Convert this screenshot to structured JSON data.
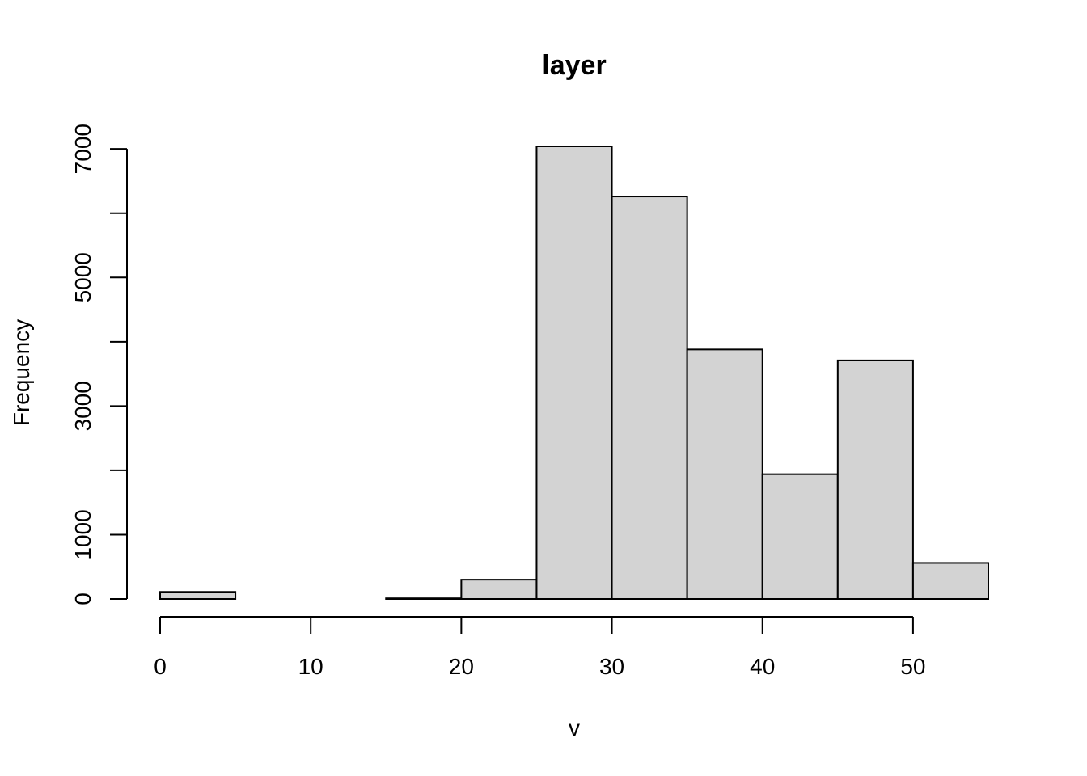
{
  "chart_data": {
    "type": "bar",
    "title": "layer",
    "xlabel": "v",
    "ylabel": "Frequency",
    "bins": [
      {
        "from": 0,
        "to": 5,
        "count": 110
      },
      {
        "from": 5,
        "to": 10,
        "count": 0
      },
      {
        "from": 10,
        "to": 15,
        "count": 0
      },
      {
        "from": 15,
        "to": 20,
        "count": 10
      },
      {
        "from": 20,
        "to": 25,
        "count": 300
      },
      {
        "from": 25,
        "to": 30,
        "count": 7040
      },
      {
        "from": 30,
        "to": 35,
        "count": 6260
      },
      {
        "from": 35,
        "to": 40,
        "count": 3880
      },
      {
        "from": 40,
        "to": 45,
        "count": 1940
      },
      {
        "from": 45,
        "to": 50,
        "count": 3710
      },
      {
        "from": 50,
        "to": 55,
        "count": 560
      }
    ],
    "xlim": [
      0,
      55
    ],
    "ylim": [
      0,
      7040
    ],
    "x_ticks": [
      0,
      10,
      20,
      30,
      40,
      50
    ],
    "x_tick_labels": [
      "0",
      "10",
      "20",
      "30",
      "40",
      "50"
    ],
    "y_ticks": [
      0,
      1000,
      2000,
      3000,
      4000,
      5000,
      6000,
      7000
    ],
    "y_tick_labels": [
      "0",
      "1000",
      "",
      "3000",
      "",
      "5000",
      "",
      "7000"
    ],
    "bar_color": "#d3d3d3",
    "edge_color": "#000000",
    "grid": false,
    "legend": "none"
  }
}
